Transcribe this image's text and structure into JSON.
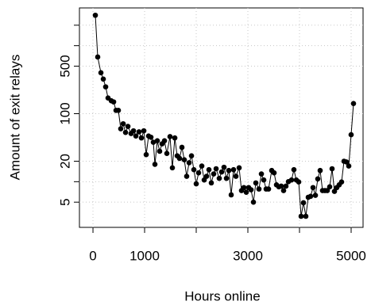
{
  "chart_data": {
    "type": "line",
    "xlabel": "Hours online",
    "ylabel": "Amount of exit relays",
    "x": [
      46,
      92,
      154,
      200,
      246,
      292,
      354,
      400,
      446,
      492,
      538,
      585,
      631,
      677,
      738,
      785,
      831,
      892,
      938,
      985,
      1031,
      1077,
      1123,
      1169,
      1200,
      1246,
      1292,
      1338,
      1385,
      1431,
      1492,
      1538,
      1585,
      1631,
      1677,
      1723,
      1769,
      1815,
      1862,
      1908,
      1954,
      2000,
      2046,
      2108,
      2154,
      2200,
      2246,
      2292,
      2338,
      2385,
      2446,
      2492,
      2538,
      2585,
      2631,
      2677,
      2723,
      2769,
      2831,
      2877,
      2923,
      2969,
      3015,
      3062,
      3108,
      3154,
      3215,
      3262,
      3308,
      3354,
      3400,
      3462,
      3508,
      3554,
      3600,
      3646,
      3692,
      3738,
      3785,
      3846,
      3892,
      3938,
      3985,
      4031,
      4077,
      4123,
      4169,
      4215,
      4262,
      4308,
      4354,
      4400,
      4446,
      4492,
      4538,
      4585,
      4631,
      4677,
      4723,
      4769,
      4815,
      4862,
      4908,
      4954,
      5000,
      5046
    ],
    "series": [
      {
        "color": "#000000",
        "values": [
          2800,
          681,
          400,
          323,
          248,
          170,
          155,
          149,
          112,
          112,
          60,
          71,
          53,
          65,
          51,
          56,
          47,
          54,
          44,
          56,
          25,
          47,
          45,
          38,
          18,
          40,
          28,
          36,
          40,
          26,
          46,
          16,
          44,
          24,
          22,
          32,
          21,
          12,
          19,
          24,
          15,
          9.3,
          13.5,
          17,
          10.6,
          12,
          15,
          9.6,
          13,
          15.5,
          11.2,
          13.9,
          16.3,
          11.2,
          14.6,
          6.4,
          15,
          12,
          16,
          7.4,
          8.2,
          7,
          8.2,
          7.6,
          5,
          9.6,
          7.8,
          13,
          10.6,
          7.8,
          7.8,
          14.6,
          13.5,
          9,
          8.4,
          8.6,
          7.4,
          8.6,
          10,
          10.6,
          15,
          10.6,
          9.9,
          3.1,
          4.9,
          3.1,
          5.9,
          6.1,
          8.2,
          6.3,
          11,
          14.6,
          7.4,
          7.4,
          7.4,
          8.4,
          15.5,
          7.2,
          8.2,
          9,
          9.9,
          20,
          19.5,
          17,
          49,
          141
        ]
      }
    ],
    "xlim": [
      -262,
      5231
    ],
    "xticks": [
      0,
      1000,
      3000,
      5000
    ],
    "x_minor_ticks": [
      2000,
      4000
    ],
    "ylim": [
      2.13,
      3590
    ],
    "yticks": [
      5,
      20,
      100,
      500
    ],
    "y_minor_ticks": [
      10,
      1000,
      2000
    ],
    "y_log": true,
    "grid": true
  }
}
